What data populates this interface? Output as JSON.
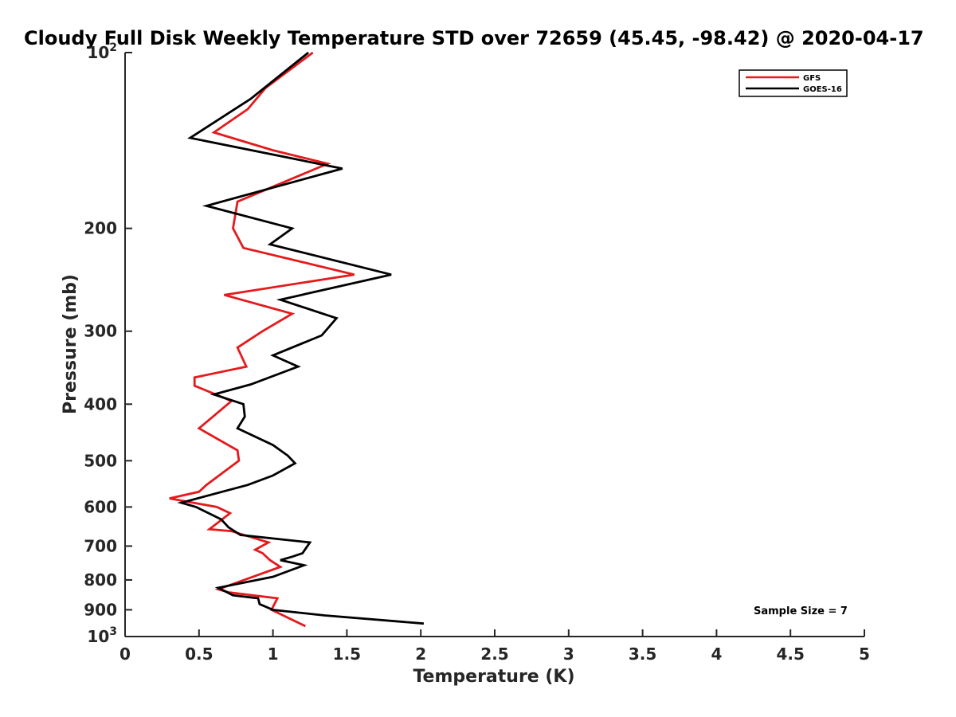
{
  "chart_data": {
    "type": "line",
    "title": "Cloudy Full Disk Weekly Temperature STD over 72659 (45.45, -98.42) @ 2020-04-17",
    "xlabel": "Temperature (K)",
    "ylabel": "Pressure (mb)",
    "xlim": [
      0,
      5
    ],
    "ylim": [
      1000,
      100
    ],
    "yscale": "log",
    "x_ticks": [
      0,
      0.5,
      1,
      1.5,
      2,
      2.5,
      3,
      3.5,
      4,
      4.5,
      5
    ],
    "x_tick_labels": [
      "0",
      "0.5",
      "1",
      "1.5",
      "2",
      "2.5",
      "3",
      "3.5",
      "4",
      "4.5",
      "5"
    ],
    "y_ticks": [
      100,
      200,
      300,
      400,
      500,
      600,
      700,
      800,
      900,
      1000
    ],
    "y_tick_labels": [
      "10^2",
      "200",
      "300",
      "400",
      "500",
      "600",
      "700",
      "800",
      "900",
      "10^3"
    ],
    "grid": false,
    "legend_position": "top-right",
    "annotation": "Sample Size = 7",
    "series": [
      {
        "name": "GFS",
        "color": "#e41a1c",
        "points": [
          [
            1.27,
            100
          ],
          [
            0.95,
            115
          ],
          [
            0.83,
            125
          ],
          [
            0.6,
            137
          ],
          [
            1.0,
            147
          ],
          [
            1.37,
            155
          ],
          [
            0.76,
            180
          ],
          [
            0.73,
            200
          ],
          [
            0.8,
            216
          ],
          [
            1.55,
            240
          ],
          [
            0.67,
            260
          ],
          [
            1.13,
            280
          ],
          [
            0.93,
            300
          ],
          [
            0.76,
            320
          ],
          [
            0.82,
            345
          ],
          [
            0.47,
            360
          ],
          [
            0.47,
            372
          ],
          [
            0.72,
            395
          ],
          [
            0.5,
            440
          ],
          [
            0.76,
            480
          ],
          [
            0.77,
            500
          ],
          [
            0.55,
            550
          ],
          [
            0.5,
            565
          ],
          [
            0.3,
            580
          ],
          [
            0.62,
            600
          ],
          [
            0.71,
            615
          ],
          [
            0.57,
            655
          ],
          [
            0.72,
            660
          ],
          [
            0.97,
            690
          ],
          [
            0.88,
            710
          ],
          [
            0.93,
            720
          ],
          [
            0.98,
            740
          ],
          [
            1.05,
            760
          ],
          [
            0.63,
            830
          ],
          [
            0.7,
            840
          ],
          [
            1.03,
            860
          ],
          [
            0.99,
            900
          ],
          [
            1.03,
            910
          ],
          [
            1.22,
            960
          ]
        ]
      },
      {
        "name": "GOES-16",
        "color": "#000000",
        "points": [
          [
            1.24,
            100
          ],
          [
            0.85,
            120
          ],
          [
            0.44,
            140
          ],
          [
            1.47,
            158
          ],
          [
            0.55,
            183
          ],
          [
            1.13,
            200
          ],
          [
            0.98,
            213
          ],
          [
            1.8,
            240
          ],
          [
            1.05,
            265
          ],
          [
            1.43,
            285
          ],
          [
            1.33,
            305
          ],
          [
            1.0,
            330
          ],
          [
            1.17,
            345
          ],
          [
            0.85,
            370
          ],
          [
            0.6,
            385
          ],
          [
            0.8,
            400
          ],
          [
            0.81,
            420
          ],
          [
            0.76,
            440
          ],
          [
            1.0,
            470
          ],
          [
            1.1,
            490
          ],
          [
            1.15,
            505
          ],
          [
            1.0,
            530
          ],
          [
            0.83,
            550
          ],
          [
            0.38,
            590
          ],
          [
            0.48,
            600
          ],
          [
            0.65,
            630
          ],
          [
            0.7,
            650
          ],
          [
            0.78,
            670
          ],
          [
            1.25,
            690
          ],
          [
            1.2,
            720
          ],
          [
            1.13,
            730
          ],
          [
            1.05,
            740
          ],
          [
            1.21,
            755
          ],
          [
            1.0,
            790
          ],
          [
            0.63,
            825
          ],
          [
            0.73,
            850
          ],
          [
            0.9,
            860
          ],
          [
            0.91,
            880
          ],
          [
            1.0,
            900
          ],
          [
            1.35,
            920
          ],
          [
            2.02,
            950
          ]
        ]
      }
    ]
  }
}
